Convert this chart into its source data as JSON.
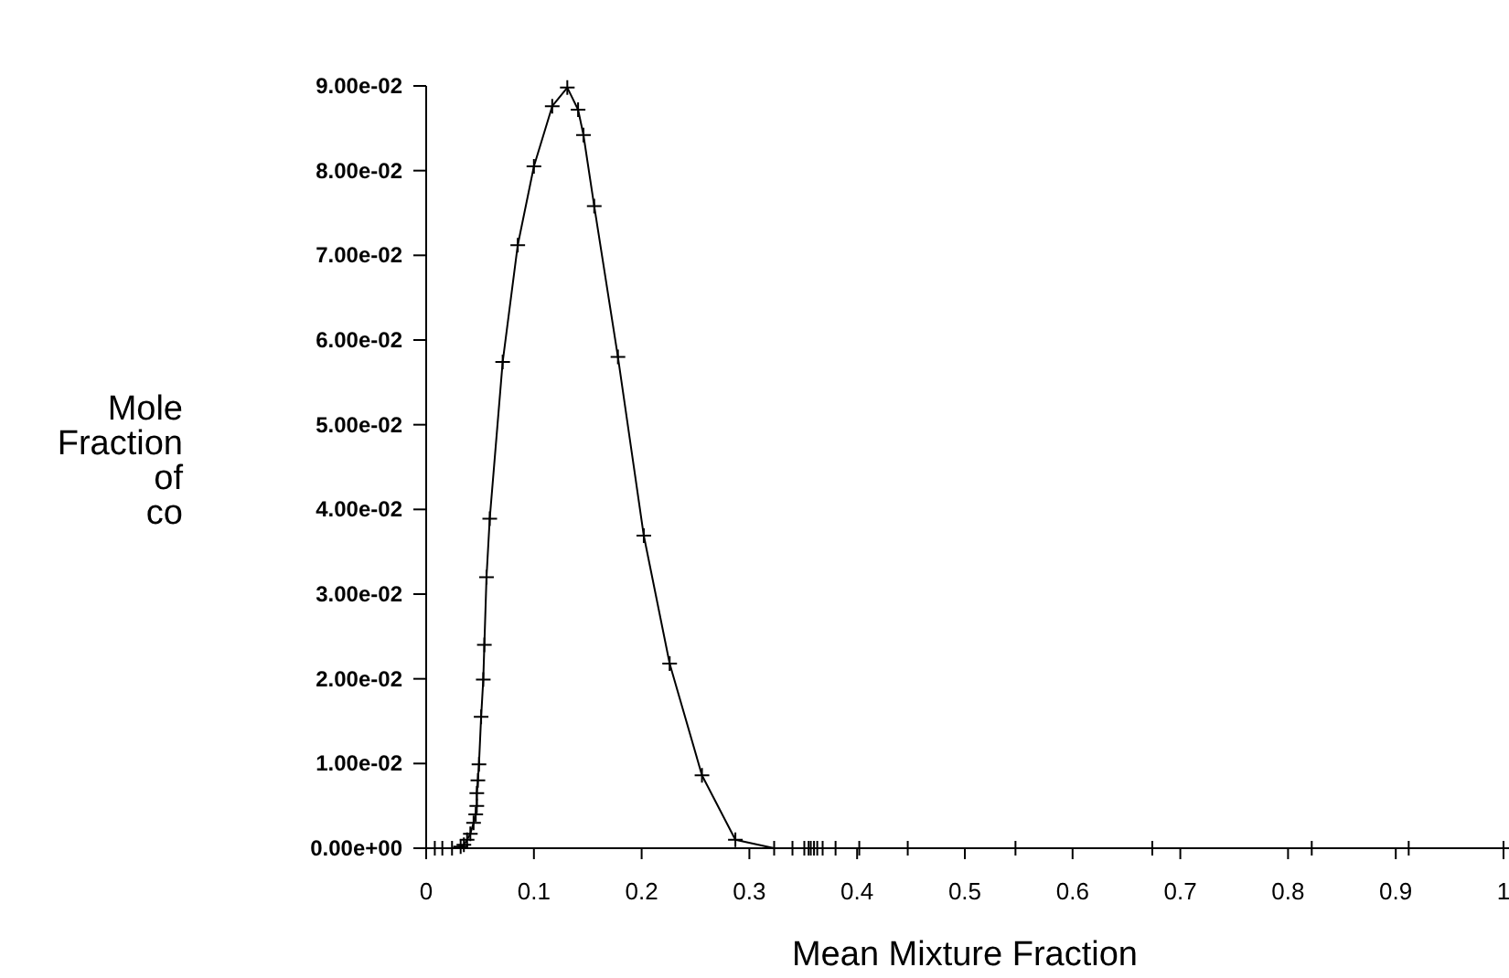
{
  "chart_data": {
    "type": "line",
    "xlabel": "Mean Mixture Fraction",
    "ylabel": "Mole Fraction of co",
    "marker": "cross",
    "line_style": "solid",
    "grid": false,
    "xlim": [
      0,
      1
    ],
    "xticks": [
      0,
      0.1,
      0.2,
      0.3,
      0.4,
      0.5,
      0.6,
      0.7,
      0.8,
      0.9,
      1
    ],
    "ylim": [
      0,
      0.09
    ],
    "yticks": [
      {
        "value": 0,
        "label": "0.00e+00"
      },
      {
        "value": 0.01,
        "label": "1.00e-02"
      },
      {
        "value": 0.02,
        "label": "2.00e-02"
      },
      {
        "value": 0.03,
        "label": "3.00e-02"
      },
      {
        "value": 0.04,
        "label": "4.00e-02"
      },
      {
        "value": 0.05,
        "label": "5.00e-02"
      },
      {
        "value": 0.06,
        "label": "6.00e-02"
      },
      {
        "value": 0.07,
        "label": "7.00e-02"
      },
      {
        "value": 0.08,
        "label": "8.00e-02"
      },
      {
        "value": 0.09,
        "label": "9.00e-02"
      }
    ],
    "series": [
      {
        "color": "#000000",
        "x": [
          0,
          0.008,
          0.015,
          0.024,
          0.032,
          0.035,
          0.038,
          0.041,
          0.044,
          0.046,
          0.047,
          0.047,
          0.048,
          0.049,
          0.051,
          0.053,
          0.054,
          0.056,
          0.059,
          0.071,
          0.085,
          0.1,
          0.117,
          0.131,
          0.141,
          0.146,
          0.156,
          0.178,
          0.202,
          0.226,
          0.256,
          0.287,
          0.323,
          0.34,
          0.351,
          0.355,
          0.357,
          0.36,
          0.363,
          0.368,
          0.38,
          0.402,
          0.447,
          0.547,
          0.674,
          0.822,
          0.912,
          1
        ],
        "values": [
          0,
          0,
          0,
          0,
          0.0002,
          0.0004,
          0.001,
          0.0017,
          0.003,
          0.004,
          0.005,
          0.0065,
          0.008,
          0.0099,
          0.0155,
          0.0199,
          0.024,
          0.032,
          0.0389,
          0.0574,
          0.0712,
          0.0805,
          0.0876,
          0.0898,
          0.0872,
          0.0842,
          0.0758,
          0.058,
          0.0369,
          0.0218,
          0.0086,
          0.001,
          0,
          0,
          0,
          0,
          0,
          0,
          0,
          0,
          0,
          0,
          0,
          0,
          0,
          0,
          0,
          0
        ]
      }
    ]
  }
}
